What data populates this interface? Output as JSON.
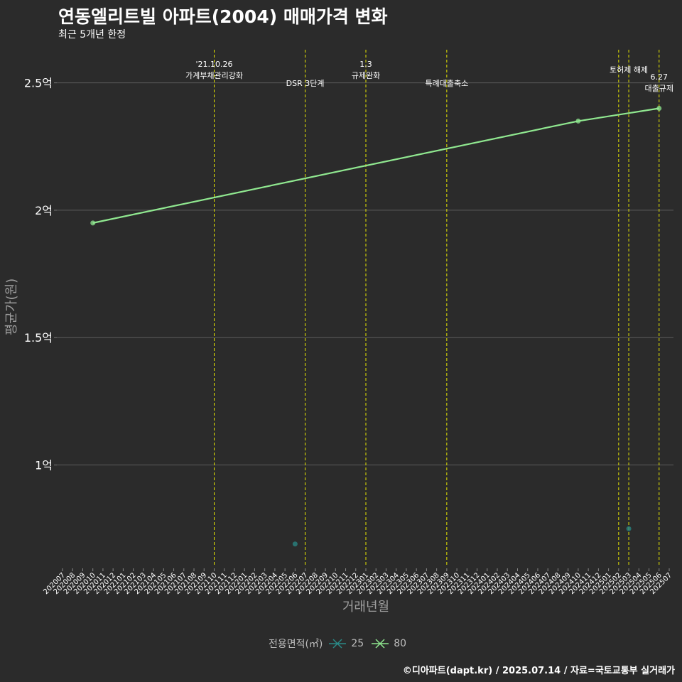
{
  "chart_data": {
    "type": "line",
    "title": "연동엘리트빌 아파트(2004) 매매가격 변화",
    "subtitle": "최근 5개년 한정",
    "xlabel": "거래년월",
    "ylabel": "평균가(원)",
    "ylim": [
      0.6,
      2.63
    ],
    "yticks": [
      {
        "value": 1.0,
        "label": "1억"
      },
      {
        "value": 1.5,
        "label": "1.5억"
      },
      {
        "value": 2.0,
        "label": "2억"
      },
      {
        "value": 2.5,
        "label": "2.5억"
      }
    ],
    "categories": [
      "202007",
      "202008",
      "202009",
      "202010",
      "202011",
      "202012",
      "202101",
      "202102",
      "202103",
      "202104",
      "202105",
      "202106",
      "202107",
      "202108",
      "202109",
      "202110",
      "202111",
      "202112",
      "202201",
      "202202",
      "202203",
      "202204",
      "202205",
      "202206",
      "202207",
      "202208",
      "202209",
      "202210",
      "202211",
      "202212",
      "202301",
      "202302",
      "202303",
      "202304",
      "202305",
      "202306",
      "202307",
      "202308",
      "202309",
      "202310",
      "202311",
      "202312",
      "202401",
      "202402",
      "202403",
      "202404",
      "202405",
      "202406",
      "202407",
      "202408",
      "202409",
      "202410",
      "202411",
      "202412",
      "202501",
      "202502",
      "202503",
      "202504",
      "202505",
      "202506",
      "202507"
    ],
    "series": [
      {
        "name": "25",
        "color": "#2a8a87",
        "line": false,
        "points": [
          {
            "x": "202206",
            "y": 0.69
          },
          {
            "x": "202503",
            "y": 0.75
          }
        ]
      },
      {
        "name": "80",
        "color": "#90e890",
        "line": true,
        "points": [
          {
            "x": "202010",
            "y": 1.95
          },
          {
            "x": "202410",
            "y": 2.35
          },
          {
            "x": "202506",
            "y": 2.4
          }
        ]
      }
    ],
    "events": [
      {
        "x": "202110",
        "lines": [
          "'21.10.26",
          "가계부채관리강화"
        ],
        "row": 0
      },
      {
        "x": "202207",
        "lines": [
          "DSR 3단계"
        ],
        "row": 2
      },
      {
        "x": "202301",
        "lines": [
          "1.3",
          "규제완화"
        ],
        "row": 0
      },
      {
        "x": "202309",
        "lines": [
          "특례대출축소"
        ],
        "row": 2
      },
      {
        "x": "202502",
        "lines": [],
        "row": 0
      },
      {
        "x": "202503",
        "lines": [
          "토허제 해제"
        ],
        "row": 1
      },
      {
        "x": "202506",
        "lines": [
          "6.27",
          "대출규제"
        ],
        "row": 1
      }
    ],
    "grid": true,
    "legend_position": "bottom",
    "legend_title": "전용면적(㎡)"
  },
  "caption": "©디아파트(dapt.kr) / 2025.07.14 / 자료=국토교통부 실거래가",
  "colors": {
    "background": "#2b2b2b",
    "grid": "#5c5c5c",
    "event_line": "#e6e600"
  }
}
